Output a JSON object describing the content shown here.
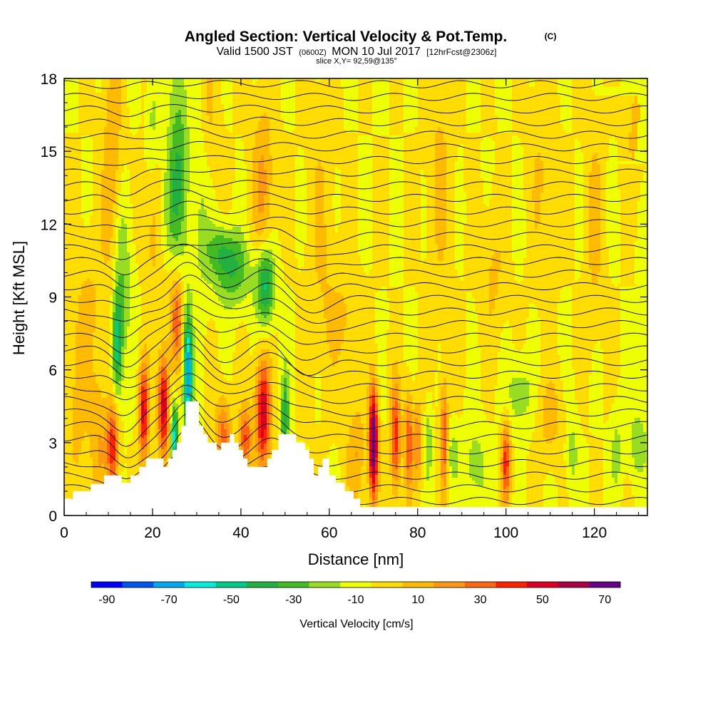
{
  "chart_data": {
    "type": "heatmap",
    "title": "Angled Section: Vertical Velocity & Pot.Temp.",
    "title_unit": "(C)",
    "subtitle": {
      "valid": "Valid 1500 JST",
      "zulu": "(0600Z)",
      "date": "MON 10 Jul 2017",
      "forecast": "[12hrFcst@2306z]"
    },
    "slice": "slice X,Y= 92,59@135°",
    "xlabel": "Distance [nm]",
    "ylabel": "Height [Kft MSL]",
    "xlim": [
      0,
      132
    ],
    "ylim": [
      0,
      18
    ],
    "x_ticks": [
      0,
      20,
      40,
      60,
      80,
      100,
      120
    ],
    "y_ticks": [
      0,
      3,
      6,
      9,
      12,
      15,
      18
    ],
    "grid": false,
    "colorbar": {
      "label": "Vertical Velocity [cm/s]",
      "levels": [
        -90,
        -80,
        -70,
        -60,
        -50,
        -40,
        -30,
        -20,
        -10,
        0,
        10,
        20,
        30,
        40,
        50,
        60,
        70,
        80
      ],
      "tick_labels": [
        -90,
        -70,
        -50,
        -30,
        -10,
        10,
        30,
        50,
        70
      ],
      "colors": [
        "#0000ff",
        "#0055f0",
        "#00a8f0",
        "#00eedd",
        "#00cc88",
        "#22b040",
        "#44bb22",
        "#99dd22",
        "#eeff00",
        "#ffdd00",
        "#ffbb00",
        "#ff9911",
        "#ff6611",
        "#ff2200",
        "#dd0022",
        "#aa0044",
        "#660088"
      ]
    },
    "terrain_profile": [
      [
        0,
        0.7
      ],
      [
        2,
        0.7
      ],
      [
        2,
        1.0
      ],
      [
        6,
        1.0
      ],
      [
        6,
        1.3
      ],
      [
        9,
        1.3
      ],
      [
        9,
        1.65
      ],
      [
        13,
        1.65
      ],
      [
        13,
        1.35
      ],
      [
        15,
        1.35
      ],
      [
        15,
        1.65
      ],
      [
        17,
        1.65
      ],
      [
        17,
        2.0
      ],
      [
        18.5,
        2.0
      ],
      [
        18.5,
        2.35
      ],
      [
        22.5,
        2.35
      ],
      [
        22.5,
        2.0
      ],
      [
        23.5,
        2.0
      ],
      [
        23.5,
        2.35
      ],
      [
        24.5,
        2.35
      ],
      [
        24.5,
        2.7
      ],
      [
        25.5,
        2.7
      ],
      [
        25.5,
        3.0
      ],
      [
        26.5,
        3.0
      ],
      [
        26.5,
        3.7
      ],
      [
        27.5,
        3.7
      ],
      [
        27.5,
        4.7
      ],
      [
        30.5,
        4.7
      ],
      [
        30.5,
        3.7
      ],
      [
        31.5,
        3.7
      ],
      [
        31.5,
        3.35
      ],
      [
        32.5,
        3.35
      ],
      [
        32.5,
        3.0
      ],
      [
        34.5,
        3.0
      ],
      [
        34.5,
        2.7
      ],
      [
        35.5,
        2.7
      ],
      [
        35.5,
        3.0
      ],
      [
        37.5,
        3.0
      ],
      [
        37.5,
        3.35
      ],
      [
        38.5,
        3.35
      ],
      [
        38.5,
        3.0
      ],
      [
        39.5,
        3.0
      ],
      [
        39.5,
        2.7
      ],
      [
        40.5,
        2.7
      ],
      [
        40.5,
        2.35
      ],
      [
        41.5,
        2.35
      ],
      [
        41.5,
        2.0
      ],
      [
        46,
        2.0
      ],
      [
        46,
        2.35
      ],
      [
        47,
        2.35
      ],
      [
        47,
        2.7
      ],
      [
        48.5,
        2.7
      ],
      [
        48.5,
        3.35
      ],
      [
        52.5,
        3.35
      ],
      [
        52.5,
        3.0
      ],
      [
        54.5,
        3.0
      ],
      [
        54.5,
        2.7
      ],
      [
        55.5,
        2.7
      ],
      [
        55.5,
        2.35
      ],
      [
        56.5,
        2.35
      ],
      [
        56.5,
        1.65
      ],
      [
        57.5,
        1.65
      ],
      [
        57.5,
        2.0
      ],
      [
        58.5,
        2.0
      ],
      [
        58.5,
        2.35
      ],
      [
        60,
        2.35
      ],
      [
        60,
        1.65
      ],
      [
        61.5,
        1.65
      ],
      [
        61.5,
        1.35
      ],
      [
        63.5,
        1.35
      ],
      [
        63.5,
        1.0
      ],
      [
        65.5,
        1.0
      ],
      [
        65.5,
        0.7
      ],
      [
        67,
        0.7
      ],
      [
        67,
        0.35
      ],
      [
        71,
        0.35
      ],
      [
        71,
        0.35
      ],
      [
        77,
        0.35
      ],
      [
        77,
        0.35
      ],
      [
        132,
        0.35
      ]
    ]
  }
}
